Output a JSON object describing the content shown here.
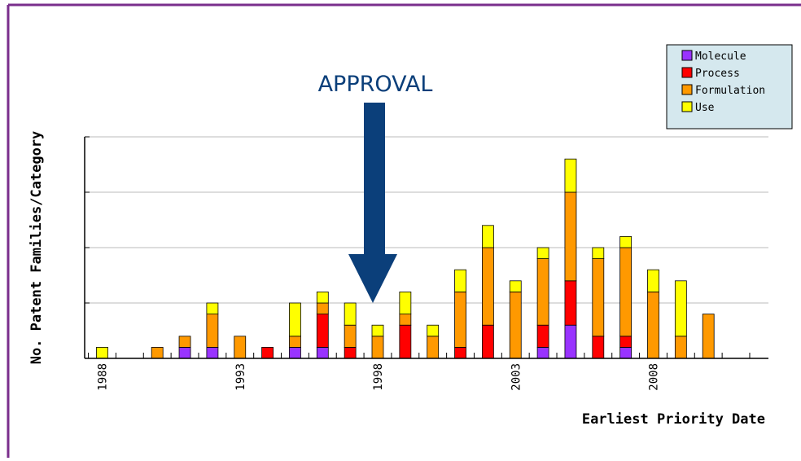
{
  "chart_data": {
    "type": "bar",
    "stacked": true,
    "xlabel": "Earliest Priority Date",
    "ylabel": "No. Patent Families/Category",
    "x": [
      1988,
      1989,
      1990,
      1991,
      1992,
      1993,
      1994,
      1995,
      1996,
      1997,
      1998,
      1999,
      2000,
      2001,
      2002,
      2003,
      2004,
      2005,
      2006,
      2007,
      2008,
      2009,
      2010,
      2011,
      2012
    ],
    "x_tick_labels": [
      "1988",
      "1993",
      "1998",
      "2003",
      "2008"
    ],
    "ylim": [
      0,
      20
    ],
    "grid": "horizontal",
    "legend_position": "top-right",
    "series": [
      {
        "name": "Molecule",
        "color": "#9933ff",
        "values": [
          0,
          0,
          0,
          1,
          1,
          0,
          0,
          1,
          1,
          0,
          0,
          0,
          0,
          0,
          0,
          0,
          1,
          3,
          0,
          1,
          0,
          0,
          0,
          0,
          0
        ]
      },
      {
        "name": "Process",
        "color": "#ff0000",
        "values": [
          0,
          0,
          0,
          0,
          0,
          0,
          1,
          0,
          3,
          1,
          0,
          3,
          0,
          1,
          3,
          0,
          2,
          4,
          2,
          1,
          0,
          0,
          0,
          0,
          0
        ]
      },
      {
        "name": "Formulation",
        "color": "#ff9900",
        "values": [
          0,
          0,
          1,
          1,
          3,
          2,
          0,
          1,
          1,
          2,
          2,
          1,
          2,
          5,
          7,
          6,
          6,
          8,
          7,
          8,
          6,
          2,
          4,
          0,
          0
        ]
      },
      {
        "name": "Use",
        "color": "#ffff00",
        "values": [
          1,
          0,
          0,
          0,
          1,
          0,
          0,
          3,
          1,
          2,
          1,
          2,
          1,
          2,
          2,
          1,
          1,
          3,
          1,
          1,
          2,
          5,
          0,
          0,
          0
        ]
      }
    ],
    "annotation": {
      "text": "APPROVAL",
      "x": 1998,
      "arrow_color": "#0b3f7a"
    }
  },
  "colors": {
    "frame_border": "#7a2e8c",
    "legend_bg": "#d5e8ee",
    "gridline": "#bbbbbb"
  }
}
